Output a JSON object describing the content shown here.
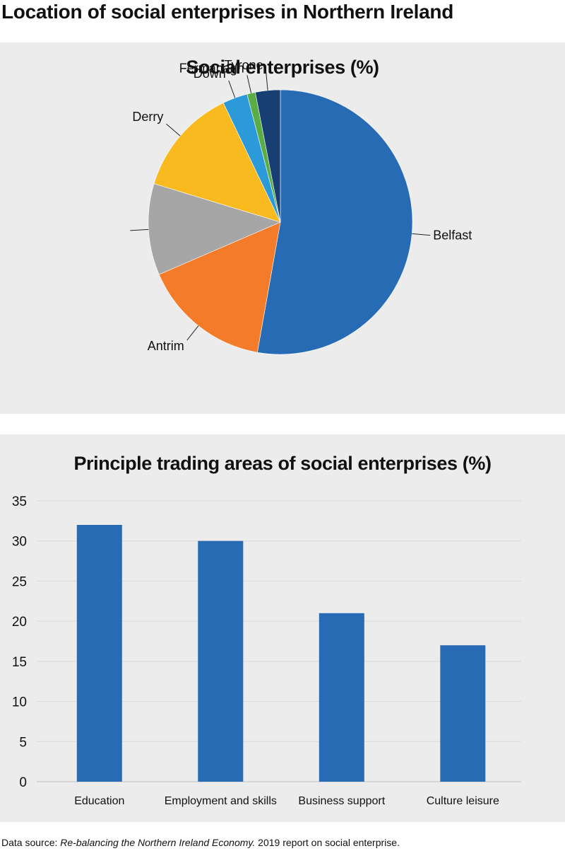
{
  "page": {
    "title": "Location of social enterprises in Northern Ireland",
    "source_prefix": "Data source:",
    "source_italic": "Re-balancing the Northern Ireland Economy.",
    "source_suffix": "2019 report on social enterprise."
  },
  "colors": {
    "panel_bg": "#ececec",
    "bar": "#276bb5",
    "gridline": "#d9d9d9"
  },
  "chart_data": [
    {
      "type": "pie",
      "title": "Social enterprises (%)",
      "slices": [
        {
          "label": "Belfast",
          "value": 52,
          "color": "#276bb5"
        },
        {
          "label": "Antrim",
          "value": 15.5,
          "color": "#f47b2a"
        },
        {
          "label": "",
          "value": 11,
          "color": "#a6a6a6"
        },
        {
          "label": "Derry",
          "value": 13,
          "color": "#f8ba1f"
        },
        {
          "label": "Down",
          "value": 3,
          "color": "#2c9ad8"
        },
        {
          "label": "Fermanagh",
          "value": 1,
          "color": "#5aac45"
        },
        {
          "label": "Tyrone",
          "value": 3,
          "color": "#173f73"
        }
      ]
    },
    {
      "type": "bar",
      "title": "Principle trading areas of social enterprises (%)",
      "categories": [
        "Education",
        "Employment and skills",
        "Business support",
        "Culture leisure"
      ],
      "values": [
        32,
        30,
        21,
        17
      ],
      "ylim": [
        0,
        35
      ],
      "yticks": [
        0,
        5,
        10,
        15,
        20,
        25,
        30,
        35
      ],
      "grid": true
    }
  ]
}
